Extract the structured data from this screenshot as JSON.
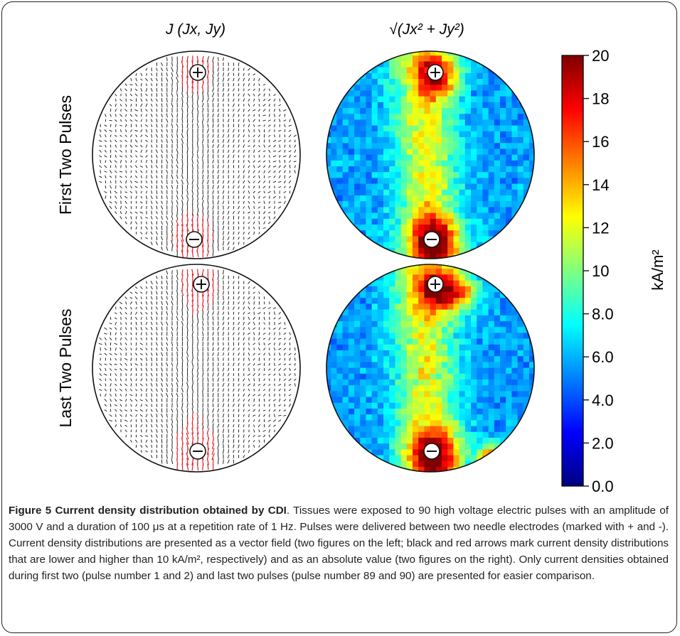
{
  "figure": {
    "col_left_title": "J (Jx, Jy)",
    "col_right_title": "√(Jx² + Jy²)",
    "row_labels": [
      "First Two Pulses",
      "Last Two Pulses"
    ],
    "electrode_symbols": [
      "⊕",
      "⊖"
    ],
    "colorbar": {
      "unit_label": "kA/m²",
      "ticks": [
        "20",
        "18",
        "16",
        "14",
        "12",
        "10",
        "8.0",
        "6.0",
        "4.0",
        "2.0",
        "0.0"
      ],
      "colors": [
        "#00007f",
        "#0000ff",
        "#0080ff",
        "#00ffff",
        "#80ff80",
        "#ffff00",
        "#ff8000",
        "#ff0000",
        "#7f0000"
      ]
    },
    "vector_colors": {
      "low": "#111111",
      "high": "#e8202a"
    }
  },
  "caption": {
    "title": "Figure 5 Current density distribution obtained by CDI",
    "body": ". Tissues were exposed to 90 high voltage electric pulses with an amplitude of 3000 V and a duration of 100 μs at a repetition rate of 1 Hz. Pulses were delivered between two needle electrodes (marked with + and -). Current density distributions are presented as a vector field (two figures on the left; black and red arrows mark current density distributions that are lower and higher than 10 kA/m², respectively) and as an absolute value (two figures on the right). Only current densities obtained during first two (pulse number 1 and 2) and last two pulses (pulse number 89 and 90) are presented for easier comparison."
  }
}
